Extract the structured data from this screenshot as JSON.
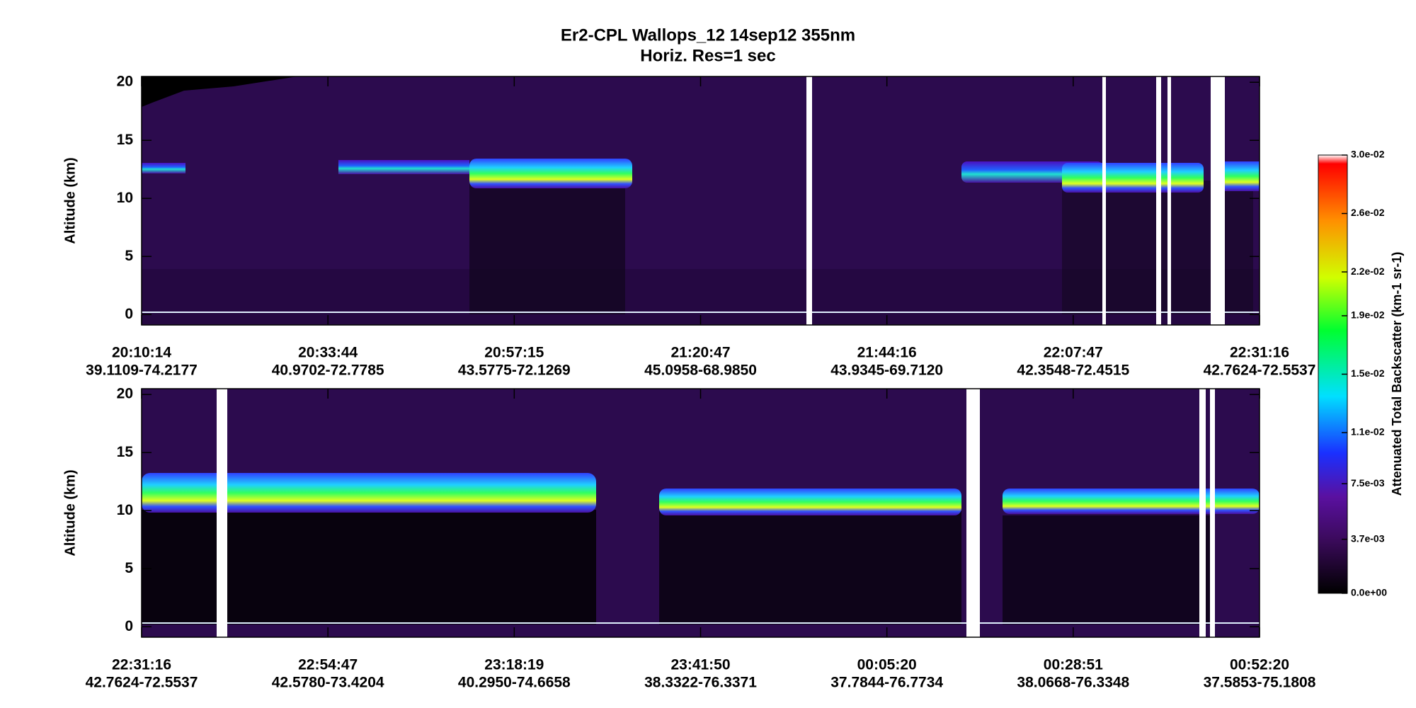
{
  "title": "Er2-CPL  Wallops_12  14sep12  355nm",
  "subtitle": "Horiz. Res=1 sec",
  "chart_data": [
    {
      "type": "heatmap",
      "ylabel": "Altitude (km)",
      "ylim": [
        -0.9,
        20.5
      ],
      "yticks": [
        0,
        5,
        10,
        15,
        20
      ],
      "x_labels": [
        {
          "time": "20:10:14",
          "location": "39.1109-74.2177"
        },
        {
          "time": "20:33:44",
          "location": "40.9702-72.7785"
        },
        {
          "time": "20:57:15",
          "location": "43.5775-72.1269"
        },
        {
          "time": "21:20:47",
          "location": "45.0958-68.9850"
        },
        {
          "time": "21:44:16",
          "location": "43.9345-69.7120"
        },
        {
          "time": "22:07:47",
          "location": "42.3548-72.4515"
        },
        {
          "time": "22:31:16",
          "location": "42.7624-72.5537"
        }
      ]
    },
    {
      "type": "heatmap",
      "ylabel": "Altitude (km)",
      "ylim": [
        -0.9,
        20.5
      ],
      "yticks": [
        0,
        5,
        10,
        15,
        20
      ],
      "x_labels": [
        {
          "time": "22:31:16",
          "location": "42.7624-72.5537"
        },
        {
          "time": "22:54:47",
          "location": "42.5780-73.4204"
        },
        {
          "time": "23:18:19",
          "location": "40.2950-74.6658"
        },
        {
          "time": "23:41:50",
          "location": "38.3322-76.3371"
        },
        {
          "time": "00:05:20",
          "location": "37.7844-76.7734"
        },
        {
          "time": "00:28:51",
          "location": "38.0668-76.3348"
        },
        {
          "time": "00:52:20",
          "location": "37.5853-75.1808"
        }
      ]
    }
  ],
  "colorbar": {
    "label": "Attenuated Total Backscatter (km-1 sr-1)",
    "clim": [
      0,
      0.03
    ],
    "ticks": [
      {
        "value": 0,
        "label": "0.0e+00"
      },
      {
        "value": 0.0037,
        "label": "3.7e-03"
      },
      {
        "value": 0.0075,
        "label": "7.5e-03"
      },
      {
        "value": 0.011,
        "label": "1.1e-02"
      },
      {
        "value": 0.015,
        "label": "1.5e-02"
      },
      {
        "value": 0.019,
        "label": "1.9e-02"
      },
      {
        "value": 0.022,
        "label": "2.2e-02"
      },
      {
        "value": 0.026,
        "label": "2.6e-02"
      },
      {
        "value": 0.03,
        "label": "3.0e-02"
      }
    ]
  }
}
